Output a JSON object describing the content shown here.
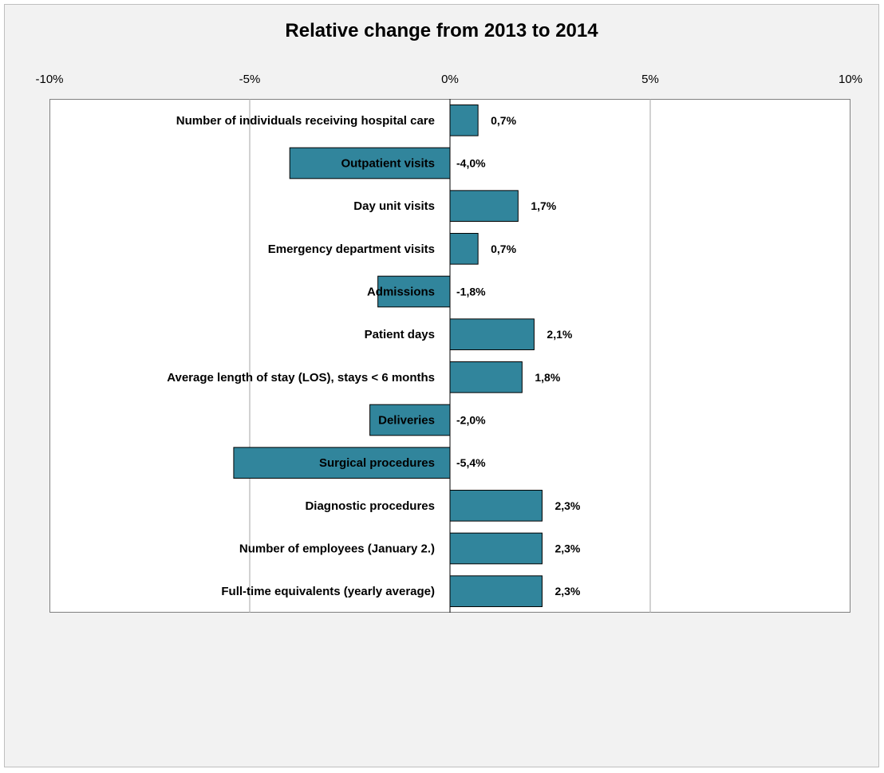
{
  "chart_data": {
    "type": "bar",
    "orientation": "horizontal",
    "title": "Relative change from 2013 to 2014",
    "xlabel": "",
    "ylabel": "",
    "xlim": [
      -10,
      10
    ],
    "x_ticks": [
      "-10%",
      "-5%",
      "0%",
      "5%",
      "10%"
    ],
    "x_tick_values": [
      -10,
      -5,
      0,
      5,
      10
    ],
    "x_axis_position": "top",
    "grid": true,
    "bar_color": "#31859c",
    "bar_edge_color": "#000000",
    "background_color": "#f2f2f2",
    "categories": [
      "Number of individuals  receiving hospital care",
      "Outpatient visits",
      "Day unit visits",
      "Emergency department visits",
      "Admissions",
      "Patient days",
      "Average length of stay (LOS), stays < 6 months",
      "Deliveries",
      "Surgical procedures",
      "Diagnostic procedures",
      "Number of employees (January  2.)",
      "Full-time equivalents  (yearly average)"
    ],
    "values": [
      0.7,
      -4.0,
      1.7,
      0.7,
      -1.8,
      2.1,
      1.8,
      -2.0,
      -5.4,
      2.3,
      2.3,
      2.3
    ],
    "data_labels": [
      "0,7%",
      "-4,0%",
      "1,7%",
      "0,7%",
      "-1,8%",
      "2,1%",
      "1,8%",
      "-2,0%",
      "-5,4%",
      "2,3%",
      "2,3%",
      "2,3%"
    ]
  }
}
